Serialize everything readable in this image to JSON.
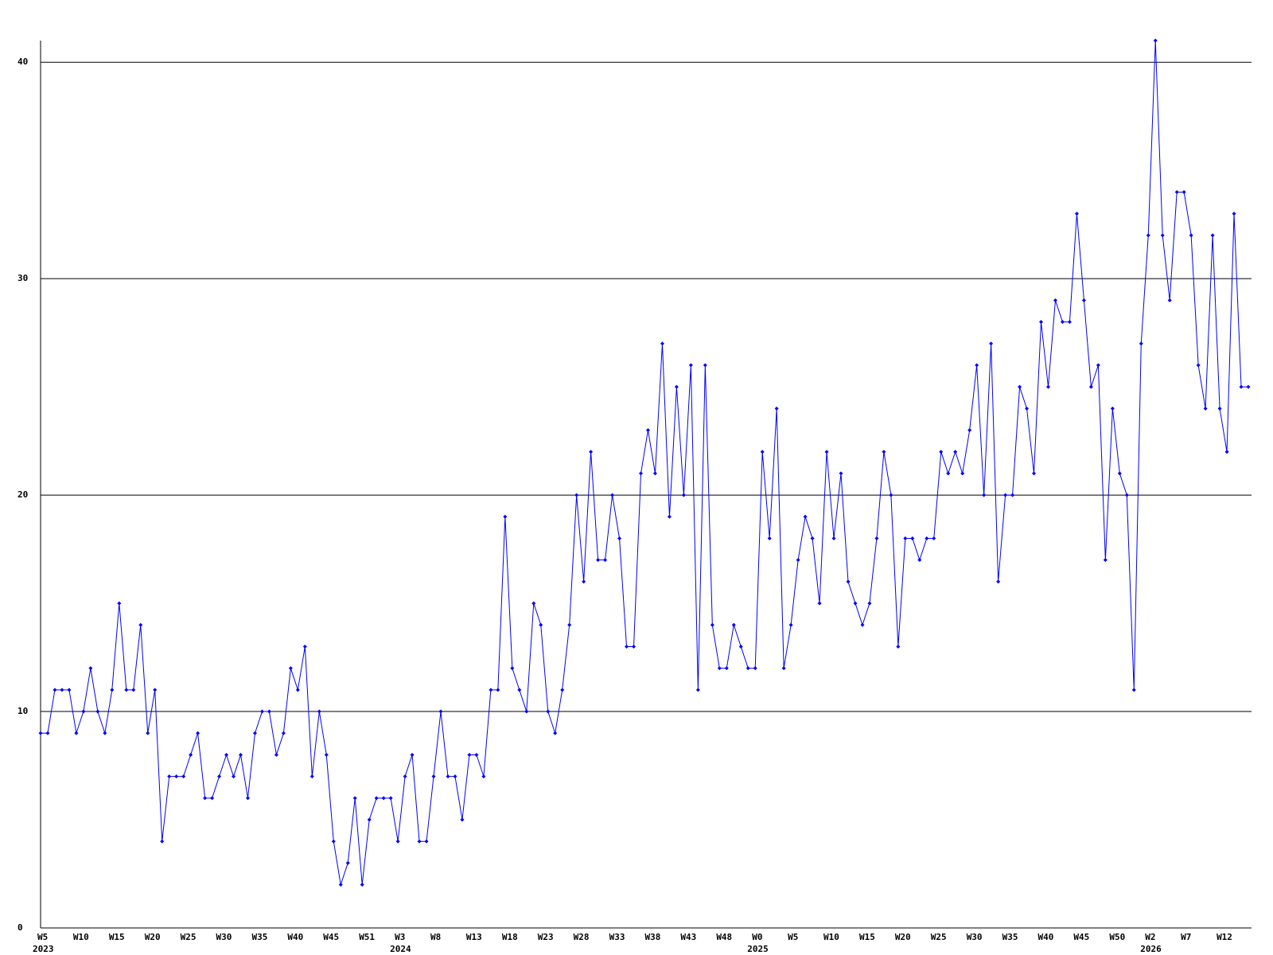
{
  "chart_data": {
    "type": "line",
    "color": "#0000ff",
    "grid": true,
    "ylim": [
      0,
      41
    ],
    "yticks": [
      0,
      10,
      20,
      30,
      40
    ],
    "values": [
      9,
      9,
      11,
      11,
      11,
      9,
      10,
      12,
      10,
      9,
      11,
      15,
      11,
      11,
      14,
      9,
      11,
      4,
      7,
      7,
      7,
      8,
      9,
      6,
      6,
      7,
      8,
      7,
      8,
      6,
      9,
      10,
      10,
      8,
      9,
      12,
      11,
      13,
      7,
      10,
      8,
      4,
      2,
      3,
      6,
      2,
      5,
      6,
      6,
      6,
      4,
      7,
      8,
      4,
      4,
      7,
      10,
      7,
      7,
      5,
      8,
      8,
      7,
      11,
      11,
      19,
      12,
      11,
      10,
      15,
      14,
      10,
      9,
      11,
      14,
      20,
      16,
      22,
      17,
      17,
      20,
      18,
      13,
      13,
      21,
      23,
      21,
      27,
      19,
      25,
      20,
      26,
      11,
      26,
      14,
      12,
      12,
      14,
      13,
      12,
      12,
      22,
      18,
      24,
      12,
      14,
      17,
      19,
      18,
      15,
      22,
      18,
      21,
      16,
      15,
      14,
      15,
      18,
      22,
      20,
      13,
      18,
      18,
      17,
      18,
      18,
      22,
      21,
      22,
      21,
      23,
      26,
      20,
      27,
      16,
      20,
      20,
      25,
      24,
      21,
      28,
      25,
      29,
      28,
      28,
      33,
      29,
      25,
      26,
      17,
      24,
      21,
      20,
      11,
      27,
      32,
      41,
      32,
      29,
      34,
      34,
      32,
      26,
      24,
      32,
      24,
      22,
      33,
      25,
      25
    ],
    "categories": [
      "W5",
      null,
      null,
      null,
      null,
      "W10",
      null,
      null,
      null,
      null,
      "W15",
      null,
      null,
      null,
      null,
      "W20",
      null,
      null,
      null,
      null,
      "W25",
      null,
      null,
      null,
      null,
      "W30",
      null,
      null,
      null,
      null,
      "W35",
      null,
      null,
      null,
      null,
      "W40",
      null,
      null,
      null,
      null,
      "W45",
      null,
      null,
      null,
      null,
      "W51",
      null,
      null,
      null,
      null,
      "W3",
      null,
      null,
      null,
      null,
      "W8",
      null,
      null,
      null,
      null,
      "W13",
      null,
      null,
      null,
      null,
      "W18",
      null,
      null,
      null,
      null,
      "W23",
      null,
      null,
      null,
      null,
      "W28",
      null,
      null,
      null,
      null,
      "W33",
      null,
      null,
      null,
      null,
      "W38",
      null,
      null,
      null,
      null,
      "W43",
      null,
      null,
      null,
      null,
      "W48",
      null,
      null,
      null,
      null,
      "W0",
      null,
      null,
      null,
      null,
      "W5",
      null,
      null,
      null,
      null,
      "W10",
      null,
      null,
      null,
      null,
      "W15",
      null,
      null,
      null,
      null,
      "W20",
      null,
      null,
      null,
      null,
      "W25",
      null,
      null,
      null,
      null,
      "W30",
      null,
      null,
      null,
      null,
      "W35",
      null,
      null,
      null,
      null,
      "W40",
      null,
      null,
      null,
      null,
      "W45",
      null,
      null,
      null,
      null,
      "W50",
      null,
      null,
      null,
      null,
      "W2",
      null,
      null,
      null,
      null,
      "W7",
      null,
      null,
      null,
      null,
      "W12",
      null,
      null,
      null,
      null
    ],
    "years": [
      "2023",
      null,
      null,
      null,
      null,
      null,
      null,
      null,
      null,
      null,
      null,
      null,
      null,
      null,
      null,
      null,
      null,
      null,
      null,
      null,
      null,
      null,
      null,
      null,
      null,
      null,
      null,
      null,
      null,
      null,
      null,
      null,
      null,
      null,
      null,
      null,
      null,
      null,
      null,
      null,
      null,
      null,
      null,
      null,
      null,
      null,
      null,
      null,
      null,
      null,
      "2024",
      null,
      null,
      null,
      null,
      null,
      null,
      null,
      null,
      null,
      null,
      null,
      null,
      null,
      null,
      null,
      null,
      null,
      null,
      null,
      null,
      null,
      null,
      null,
      null,
      null,
      null,
      null,
      null,
      null,
      null,
      null,
      null,
      null,
      null,
      null,
      null,
      null,
      null,
      null,
      null,
      null,
      null,
      null,
      null,
      null,
      null,
      null,
      null,
      null,
      "2025",
      null,
      null,
      null,
      null,
      null,
      null,
      null,
      null,
      null,
      null,
      null,
      null,
      null,
      null,
      null,
      null,
      null,
      null,
      null,
      null,
      null,
      null,
      null,
      null,
      null,
      null,
      null,
      null,
      null,
      null,
      null,
      null,
      null,
      null,
      null,
      null,
      null,
      null,
      null,
      null,
      null,
      null,
      null,
      null,
      null,
      null,
      null,
      null,
      null,
      null,
      null,
      null,
      null,
      null,
      "2026",
      null,
      null,
      null,
      null,
      null,
      null,
      null,
      null,
      null,
      null,
      null,
      null,
      null,
      null
    ]
  }
}
